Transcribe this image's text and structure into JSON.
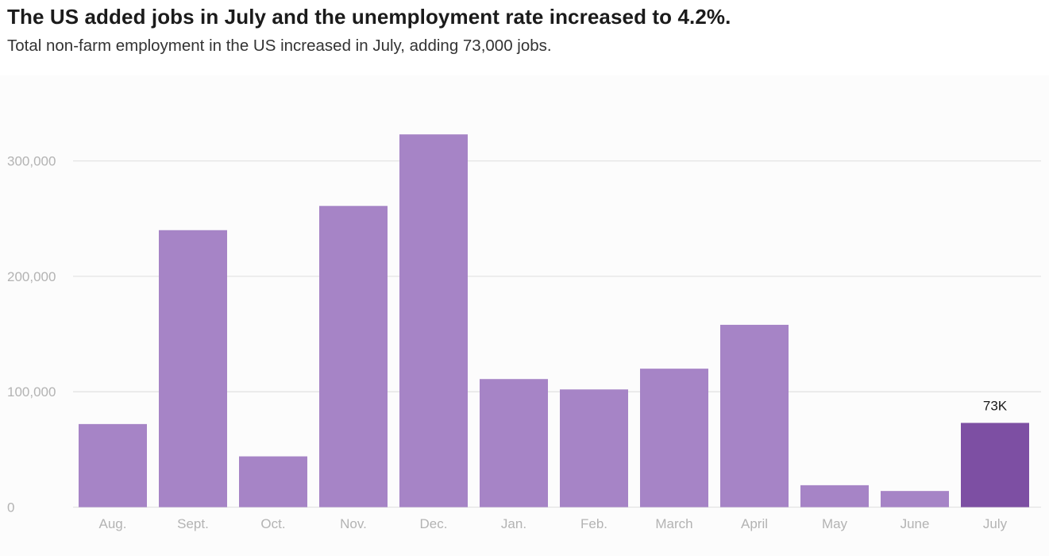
{
  "header": {
    "title": "The US added jobs in July and the unemployment rate increased to 4.2%.",
    "subtitle": "Total non-farm employment in the US increased in July, adding 73,000 jobs."
  },
  "chart_data": {
    "type": "bar",
    "categories": [
      "Aug.",
      "Sept.",
      "Oct.",
      "Nov.",
      "Dec.",
      "Jan.",
      "Feb.",
      "March",
      "April",
      "May",
      "June",
      "July"
    ],
    "values": [
      72000,
      240000,
      44000,
      261000,
      323000,
      111000,
      102000,
      120000,
      158000,
      19000,
      14000,
      73000
    ],
    "yticks": [
      0,
      100000,
      200000,
      300000
    ],
    "ytick_labels": [
      "0",
      "100,000",
      "200,000",
      "300,000"
    ],
    "ylim": [
      0,
      340000
    ],
    "grid": true,
    "colors": {
      "bar": "#a684c6",
      "highlight": "#7d4fa3",
      "grid": "#e3e3e3",
      "axis_text": "#b3b3b3"
    },
    "highlight_index": 11,
    "annotations": [
      {
        "index": 11,
        "text": "73K"
      }
    ]
  }
}
